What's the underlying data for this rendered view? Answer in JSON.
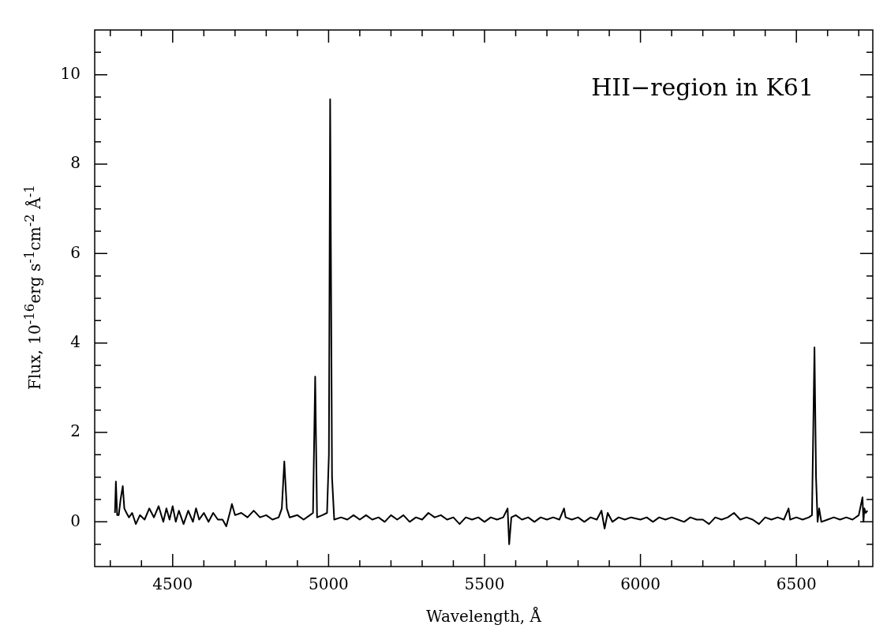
{
  "chart_data": {
    "type": "line",
    "title": "HII−region in K61",
    "xlabel": "Wavelength, Å",
    "ylabel": "Flux,  10$^{-16}$erg  s$^{-1}$cm$^{-2}$ Å$^{-1}$",
    "xlim": [
      4250,
      6745
    ],
    "ylim": [
      -1,
      11
    ],
    "grid": false,
    "legend": false,
    "marker": "none",
    "line_style": "solid",
    "xticks": [
      {
        "value": 4300,
        "label": null
      },
      {
        "value": 4400,
        "label": null
      },
      4500,
      {
        "value": 4600,
        "label": null
      },
      {
        "value": 4700,
        "label": null
      },
      {
        "value": 4800,
        "label": null
      },
      {
        "value": 4900,
        "label": null
      },
      5000,
      {
        "value": 5100,
        "label": null
      },
      {
        "value": 5200,
        "label": null
      },
      {
        "value": 5300,
        "label": null
      },
      {
        "value": 5400,
        "label": null
      },
      5500,
      {
        "value": 5600,
        "label": null
      },
      {
        "value": 5700,
        "label": null
      },
      {
        "value": 5800,
        "label": null
      },
      {
        "value": 5900,
        "label": null
      },
      6000,
      {
        "value": 6100,
        "label": null
      },
      {
        "value": 6200,
        "label": null
      },
      {
        "value": 6300,
        "label": null
      },
      {
        "value": 6400,
        "label": null
      },
      6500,
      {
        "value": 6600,
        "label": null
      },
      {
        "value": 6700,
        "label": null
      }
    ],
    "yticks": [
      {
        "value": -0.5,
        "label": null
      },
      0,
      {
        "value": 0.5,
        "label": null
      },
      {
        "value": 1,
        "label": null
      },
      {
        "value": 1.5,
        "label": null
      },
      2,
      {
        "value": 2.5,
        "label": null
      },
      {
        "value": 3,
        "label": null
      },
      {
        "value": 3.5,
        "label": null
      },
      4,
      {
        "value": 4.5,
        "label": null
      },
      {
        "value": 5,
        "label": null
      },
      {
        "value": 5.5,
        "label": null
      },
      6,
      {
        "value": 6.5,
        "label": null
      },
      {
        "value": 7,
        "label": null
      },
      {
        "value": 7.5,
        "label": null
      },
      8,
      {
        "value": 8.5,
        "label": null
      },
      {
        "value": 9,
        "label": null
      },
      {
        "value": 9.5,
        "label": null
      },
      10,
      {
        "value": 10.5,
        "label": null
      }
    ],
    "series": [
      {
        "color": "#000000",
        "x": [
          4315,
          4318,
          4322,
          4327,
          4333,
          4340,
          4345,
          4352,
          4360,
          4370,
          4382,
          4395,
          4410,
          4425,
          4440,
          4455,
          4470,
          4480,
          4490,
          4500,
          4510,
          4520,
          4535,
          4550,
          4565,
          4575,
          4585,
          4600,
          4615,
          4630,
          4645,
          4660,
          4672,
          4685,
          4690,
          4700,
          4720,
          4740,
          4760,
          4780,
          4800,
          4820,
          4840,
          4850,
          4858,
          4866,
          4875,
          4900,
          4920,
          4940,
          4950,
          4957,
          4963,
          4980,
          4995,
          5001,
          5005,
          5011,
          5018,
          5040,
          5060,
          5080,
          5100,
          5120,
          5140,
          5160,
          5180,
          5200,
          5220,
          5240,
          5260,
          5280,
          5300,
          5320,
          5340,
          5360,
          5380,
          5400,
          5420,
          5440,
          5460,
          5480,
          5500,
          5520,
          5540,
          5560,
          5574,
          5579,
          5586,
          5600,
          5620,
          5640,
          5660,
          5680,
          5700,
          5720,
          5740,
          5755,
          5760,
          5780,
          5800,
          5820,
          5840,
          5860,
          5875,
          5885,
          5895,
          5910,
          5930,
          5950,
          5970,
          6000,
          6020,
          6040,
          6060,
          6080,
          6100,
          6120,
          6140,
          6160,
          6180,
          6200,
          6220,
          6240,
          6260,
          6280,
          6300,
          6320,
          6340,
          6360,
          6380,
          6400,
          6420,
          6440,
          6460,
          6475,
          6480,
          6500,
          6520,
          6540,
          6550,
          6555,
          6558,
          6563,
          6568,
          6573,
          6580,
          6600,
          6620,
          6640,
          6660,
          6680,
          6700,
          6712,
          6715,
          6718,
          6722,
          6728
        ],
        "values": [
          0.2,
          0.9,
          0.15,
          0.15,
          0.5,
          0.8,
          0.3,
          0.2,
          0.1,
          0.2,
          -0.05,
          0.15,
          0.05,
          0.3,
          0.1,
          0.35,
          0.0,
          0.3,
          0.05,
          0.35,
          0.0,
          0.25,
          -0.05,
          0.25,
          0.0,
          0.3,
          0.05,
          0.2,
          0.0,
          0.2,
          0.05,
          0.05,
          -0.1,
          0.25,
          0.4,
          0.15,
          0.2,
          0.1,
          0.25,
          0.1,
          0.15,
          0.05,
          0.1,
          0.3,
          1.35,
          0.3,
          0.1,
          0.15,
          0.05,
          0.15,
          0.2,
          3.25,
          0.1,
          0.15,
          0.2,
          1.5,
          9.45,
          1.0,
          0.05,
          0.1,
          0.05,
          0.15,
          0.05,
          0.15,
          0.05,
          0.1,
          0.0,
          0.15,
          0.05,
          0.15,
          0.0,
          0.1,
          0.05,
          0.2,
          0.1,
          0.15,
          0.05,
          0.1,
          -0.05,
          0.1,
          0.05,
          0.1,
          0.0,
          0.1,
          0.05,
          0.1,
          0.3,
          -0.5,
          0.1,
          0.15,
          0.05,
          0.1,
          0.0,
          0.1,
          0.05,
          0.1,
          0.05,
          0.3,
          0.1,
          0.05,
          0.1,
          0.0,
          0.1,
          0.05,
          0.25,
          -0.15,
          0.2,
          0.0,
          0.1,
          0.05,
          0.1,
          0.05,
          0.1,
          0.0,
          0.1,
          0.05,
          0.1,
          0.05,
          0.0,
          0.1,
          0.05,
          0.05,
          -0.05,
          0.1,
          0.05,
          0.1,
          0.2,
          0.05,
          0.1,
          0.05,
          -0.05,
          0.1,
          0.05,
          0.1,
          0.05,
          0.3,
          0.05,
          0.1,
          0.05,
          0.1,
          0.15,
          2.5,
          3.9,
          1.0,
          0.0,
          0.3,
          0.0,
          0.05,
          0.1,
          0.05,
          0.1,
          0.05,
          0.15,
          0.55,
          0.0,
          0.3,
          0.2,
          0.25
        ]
      }
    ]
  }
}
